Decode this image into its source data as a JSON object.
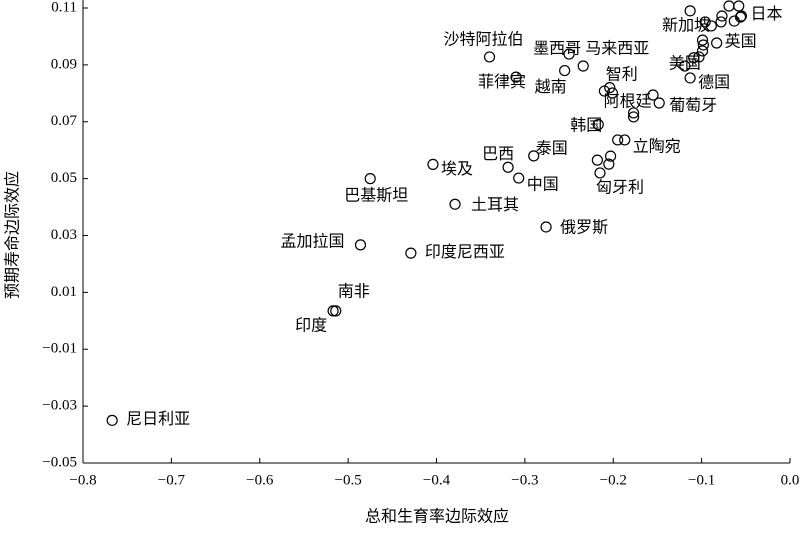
{
  "chart_data": {
    "type": "scatter",
    "x_label": "总和生育率边际效应",
    "y_label": "预期寿命边际效应",
    "xlim": [
      -0.8,
      0.0
    ],
    "ylim": [
      -0.05,
      0.11
    ],
    "xticks": [
      {
        "value": -0.8,
        "label": "−0.8"
      },
      {
        "value": -0.7,
        "label": "−0.7"
      },
      {
        "value": -0.6,
        "label": "−0.6"
      },
      {
        "value": -0.5,
        "label": "−0.5"
      },
      {
        "value": -0.4,
        "label": "−0.4"
      },
      {
        "value": -0.3,
        "label": "−0.3"
      },
      {
        "value": -0.2,
        "label": "−0.2"
      },
      {
        "value": -0.1,
        "label": "−0.1"
      },
      {
        "value": 0,
        "label": "0.0"
      }
    ],
    "yticks": [
      {
        "value": -0.05,
        "label": "−0.05"
      },
      {
        "value": -0.03,
        "label": "−0.03"
      },
      {
        "value": -0.01,
        "label": "−0.01"
      },
      0.01,
      0.03,
      0.05,
      0.07,
      0.09,
      0.11
    ],
    "color": "#000000",
    "labels": [
      "尼日利亚",
      "印度",
      "南非",
      "孟加拉国",
      "印度尼西亚",
      "巴基斯坦",
      "埃及",
      "土耳其",
      "巴西",
      "中国",
      "泰国",
      "俄罗斯",
      "韩国",
      "匈牙利",
      "立陶宛",
      "阿根廷",
      "智利",
      "葡萄牙",
      "越南",
      "菲律宾",
      "沙特阿拉伯",
      "墨西哥",
      "马来西亚",
      "美国",
      "德国",
      "新加坡",
      "英国",
      "日本",
      null,
      null,
      null,
      null,
      null,
      null,
      null,
      null,
      null,
      null,
      null,
      null,
      null,
      null,
      null,
      null,
      null,
      null,
      null,
      null,
      null
    ],
    "x": [
      -0.767,
      -0.517,
      -0.514,
      -0.486,
      -0.429,
      -0.475,
      -0.404,
      -0.379,
      -0.319,
      -0.307,
      -0.29,
      -0.276,
      -0.217,
      -0.215,
      -0.187,
      -0.177,
      -0.204,
      -0.148,
      -0.255,
      -0.31,
      -0.34,
      -0.25,
      -0.234,
      -0.119,
      -0.113,
      -0.113,
      -0.083,
      -0.056,
      -0.096,
      -0.089,
      -0.078,
      -0.069,
      -0.058,
      -0.063,
      -0.055,
      -0.077,
      -0.099,
      -0.098,
      -0.099,
      -0.103,
      -0.109,
      -0.218,
      -0.205,
      -0.203,
      -0.21,
      -0.201,
      -0.177,
      -0.155,
      -0.195
    ],
    "y": [
      -0.035,
      0.0035,
      0.0035,
      0.0267,
      0.0238,
      0.05,
      0.055,
      0.041,
      0.054,
      0.0502,
      0.058,
      0.033,
      0.069,
      0.052,
      0.0636,
      0.0717,
      0.082,
      0.0766,
      0.088,
      0.0857,
      0.0928,
      0.0938,
      0.0896,
      0.0896,
      0.0854,
      0.109,
      0.0977,
      0.1068,
      0.1051,
      0.1037,
      0.1051,
      0.1107,
      0.1107,
      0.1054,
      0.1072,
      0.1072,
      0.0987,
      0.097,
      0.0949,
      0.0928,
      0.0925,
      0.0565,
      0.0551,
      0.0579,
      0.0808,
      0.0801,
      0.0731,
      0.0794,
      0.0636
    ]
  }
}
